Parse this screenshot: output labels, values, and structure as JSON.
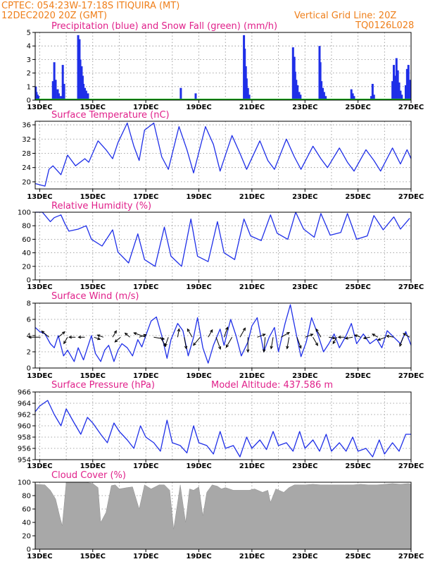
{
  "header": {
    "line1": "CPTEC:   054:23W-17:18S   ITIQUIRA (MT)",
    "line2": "12DEC2020 20Z (GMT)",
    "grid_note": "Vertical Grid Line: 20Z",
    "model_code": "TQ0126L028"
  },
  "colors": {
    "header": "#ef7f1a",
    "panel_title": "#e0208a",
    "series": "#1f2fe8",
    "snow": "#18a818",
    "cloud": "#a8a8a8"
  },
  "chart_data": [
    {
      "id": "precip",
      "type": "bar",
      "title": "Precipitation (blue) and Snow Fall (green) (mm/h)",
      "x_tick_labels": [
        "13DEC",
        "15DEC",
        "17DEC",
        "19DEC",
        "21DEC",
        "23DEC",
        "25DEC",
        "27DEC"
      ],
      "x_range": [
        12.83,
        27.0
      ],
      "ylim": [
        0,
        5
      ],
      "yticks": [
        0,
        1,
        2,
        3,
        4,
        5
      ],
      "x": [
        12.85,
        12.88,
        12.92,
        12.95,
        13.5,
        13.55,
        13.6,
        13.68,
        13.72,
        13.8,
        13.87,
        13.92,
        14.45,
        14.5,
        14.53,
        14.58,
        14.62,
        14.65,
        14.7,
        14.75,
        14.82,
        18.32,
        18.88,
        20.7,
        20.73,
        20.77,
        20.8,
        20.85,
        20.9,
        22.55,
        22.6,
        22.63,
        22.67,
        22.72,
        22.78,
        22.83,
        23.55,
        23.58,
        23.62,
        23.67,
        23.72,
        23.78,
        24.75,
        24.8,
        24.85,
        25.5,
        25.55,
        25.6,
        26.3,
        26.35,
        26.4,
        26.45,
        26.5,
        26.55,
        26.6,
        26.65,
        26.8,
        26.85,
        26.9,
        26.95
      ],
      "values": [
        1.0,
        0.6,
        0.4,
        0.3,
        1.4,
        2.8,
        1.5,
        0.8,
        0.5,
        0.3,
        2.6,
        1.2,
        4.8,
        4.5,
        3.0,
        2.5,
        1.8,
        1.2,
        0.9,
        0.7,
        0.5,
        0.9,
        0.5,
        4.8,
        3.8,
        2.5,
        1.6,
        0.9,
        0.4,
        3.9,
        3.2,
        2.1,
        1.5,
        1.1,
        0.6,
        0.4,
        4.0,
        2.8,
        1.4,
        0.9,
        0.6,
        0.3,
        0.8,
        0.5,
        0.3,
        0.3,
        1.2,
        0.4,
        1.4,
        2.6,
        1.8,
        3.1,
        2.2,
        1.3,
        0.7,
        0.4,
        1.1,
        2.3,
        2.6,
        1.5
      ],
      "snow_values": [
        0,
        0
      ]
    },
    {
      "id": "temp",
      "type": "line",
      "title": "Surface Temperature (nC)",
      "x_tick_labels": [
        "13DEC",
        "15DEC",
        "17DEC",
        "19DEC",
        "21DEC",
        "23DEC",
        "25DEC",
        "27DEC"
      ],
      "x_range": [
        12.83,
        27.0
      ],
      "ylim": [
        18,
        37
      ],
      "yticks": [
        20,
        24,
        28,
        32,
        36
      ],
      "x": [
        12.83,
        13.2,
        13.35,
        13.5,
        13.8,
        14.05,
        14.35,
        14.7,
        14.85,
        15.2,
        15.5,
        15.75,
        15.95,
        16.3,
        16.55,
        16.75,
        16.95,
        17.3,
        17.6,
        17.85,
        18.25,
        18.55,
        18.8,
        19.25,
        19.55,
        19.8,
        20.25,
        20.55,
        20.8,
        21.3,
        21.6,
        21.85,
        22.3,
        22.6,
        22.85,
        23.3,
        23.6,
        23.85,
        24.3,
        24.6,
        24.85,
        25.3,
        25.6,
        25.85,
        26.3,
        26.6,
        26.85,
        27.0
      ],
      "values": [
        19.5,
        18.8,
        23.5,
        24.5,
        22.0,
        27.5,
        24.5,
        26.5,
        25.5,
        31.5,
        29.0,
        26.5,
        31.0,
        36.5,
        30.0,
        26.0,
        34.5,
        36.5,
        27.0,
        23.5,
        35.5,
        29.0,
        22.5,
        35.5,
        30.5,
        23.0,
        33.0,
        28.0,
        23.5,
        31.5,
        26.0,
        23.5,
        32.0,
        27.0,
        23.5,
        30.0,
        26.5,
        24.0,
        29.5,
        25.5,
        23.0,
        29.0,
        26.0,
        23.0,
        29.5,
        25.0,
        29.0,
        26.5
      ]
    },
    {
      "id": "rh",
      "type": "line",
      "title": "Relative Humidity (%)",
      "x_tick_labels": [
        "13DEC",
        "15DEC",
        "17DEC",
        "19DEC",
        "21DEC",
        "23DEC",
        "25DEC",
        "27DEC"
      ],
      "x_range": [
        12.83,
        27.0
      ],
      "ylim": [
        0,
        100
      ],
      "yticks": [
        0,
        20,
        40,
        60,
        80,
        100
      ],
      "x": [
        12.83,
        13.1,
        13.4,
        13.55,
        13.8,
        13.95,
        14.1,
        14.45,
        14.75,
        14.95,
        15.35,
        15.75,
        15.95,
        16.35,
        16.7,
        16.95,
        17.35,
        17.7,
        17.95,
        18.35,
        18.7,
        18.95,
        19.35,
        19.7,
        19.95,
        20.35,
        20.7,
        20.95,
        21.35,
        21.7,
        21.95,
        22.35,
        22.65,
        22.95,
        23.35,
        23.6,
        23.95,
        24.35,
        24.6,
        24.95,
        25.35,
        25.6,
        25.95,
        26.35,
        26.6,
        26.95
      ],
      "values": [
        100,
        100,
        86,
        92,
        96,
        83,
        72,
        75,
        80,
        60,
        50,
        74,
        41,
        25,
        68,
        30,
        20,
        78,
        35,
        20,
        90,
        35,
        27,
        86,
        40,
        30,
        90,
        65,
        58,
        96,
        69,
        60,
        100,
        75,
        63,
        98,
        66,
        70,
        98,
        60,
        65,
        95,
        74,
        93,
        75,
        91
      ]
    },
    {
      "id": "wind",
      "type": "line",
      "title": "Surface Wind (m/s)",
      "x_tick_labels": [
        "13DEC",
        "15DEC",
        "17DEC",
        "19DEC",
        "21DEC",
        "23DEC",
        "25DEC",
        "27DEC"
      ],
      "x_range": [
        12.83,
        27.0
      ],
      "ylim": [
        0,
        8
      ],
      "yticks": [
        0,
        2,
        4,
        6,
        8
      ],
      "x": [
        12.83,
        13.0,
        13.2,
        13.4,
        13.55,
        13.7,
        13.9,
        14.05,
        14.3,
        14.45,
        14.65,
        14.8,
        14.95,
        15.1,
        15.3,
        15.45,
        15.6,
        15.8,
        15.95,
        16.1,
        16.3,
        16.5,
        16.7,
        16.85,
        17.0,
        17.2,
        17.4,
        17.6,
        17.8,
        17.95,
        18.2,
        18.4,
        18.6,
        18.8,
        18.95,
        19.15,
        19.35,
        19.55,
        19.8,
        19.95,
        20.2,
        20.4,
        20.6,
        20.85,
        21.0,
        21.2,
        21.45,
        21.65,
        21.85,
        22.0,
        22.25,
        22.45,
        22.65,
        22.85,
        23.05,
        23.25,
        23.5,
        23.7,
        23.9,
        24.1,
        24.3,
        24.55,
        24.75,
        24.95,
        25.2,
        25.45,
        25.7,
        25.9,
        26.1,
        26.35,
        26.6,
        26.8,
        27.0
      ],
      "values": [
        5.0,
        4.5,
        4.2,
        3.0,
        2.5,
        4.0,
        1.5,
        2.2,
        0.8,
        2.5,
        1.0,
        2.5,
        4.0,
        1.8,
        0.8,
        2.2,
        2.8,
        0.8,
        2.2,
        3.0,
        2.5,
        1.5,
        3.5,
        2.6,
        4.0,
        5.8,
        6.3,
        4.0,
        1.2,
        3.5,
        5.5,
        4.6,
        1.5,
        3.8,
        6.2,
        2.5,
        0.6,
        2.8,
        4.8,
        2.8,
        6.0,
        4.0,
        1.5,
        3.2,
        5.2,
        6.2,
        2.0,
        3.8,
        5.0,
        2.0,
        5.5,
        7.8,
        4.5,
        1.4,
        3.2,
        6.2,
        4.0,
        2.0,
        3.0,
        4.2,
        2.5,
        4.0,
        5.5,
        3.0,
        4.2,
        3.0,
        3.6,
        2.5,
        4.6,
        3.8,
        3.0,
        4.5,
        2.8
      ],
      "vector_arrows": [
        {
          "x": 13.03,
          "dir_deg": 180,
          "len": 0.55
        },
        {
          "x": 13.35,
          "dir_deg": -140,
          "len": 0.45
        },
        {
          "x": 13.7,
          "dir_deg": -40,
          "len": 0.4
        },
        {
          "x": 14.05,
          "dir_deg": 120,
          "len": 0.35
        },
        {
          "x": 14.35,
          "dir_deg": 180,
          "len": 0.3
        },
        {
          "x": 14.7,
          "dir_deg": 180,
          "len": 0.3
        },
        {
          "x": 15.05,
          "dir_deg": 20,
          "len": 0.3
        },
        {
          "x": 15.4,
          "dir_deg": -160,
          "len": 0.3
        },
        {
          "x": 15.75,
          "dir_deg": -60,
          "len": 0.35
        },
        {
          "x": 16.05,
          "dir_deg": 140,
          "len": 0.35
        },
        {
          "x": 16.4,
          "dir_deg": -140,
          "len": 0.3
        },
        {
          "x": 16.75,
          "dir_deg": -20,
          "len": 0.35
        },
        {
          "x": 17.0,
          "dir_deg": 200,
          "len": 0.6
        },
        {
          "x": 17.3,
          "dir_deg": 10,
          "len": 0.5
        },
        {
          "x": 17.55,
          "dir_deg": 60,
          "len": 0.5
        },
        {
          "x": 17.85,
          "dir_deg": 110,
          "len": 0.45
        },
        {
          "x": 18.2,
          "dir_deg": -80,
          "len": 0.4
        },
        {
          "x": 18.45,
          "dir_deg": 80,
          "len": 0.55
        },
        {
          "x": 18.75,
          "dir_deg": -120,
          "len": 0.45
        },
        {
          "x": 19.05,
          "dir_deg": 130,
          "len": 0.5
        },
        {
          "x": 19.35,
          "dir_deg": -60,
          "len": 0.4
        },
        {
          "x": 19.65,
          "dir_deg": 70,
          "len": 0.6
        },
        {
          "x": 19.95,
          "dir_deg": -70,
          "len": 0.5
        },
        {
          "x": 20.25,
          "dir_deg": 120,
          "len": 0.55
        },
        {
          "x": 20.55,
          "dir_deg": -60,
          "len": 0.5
        },
        {
          "x": 20.85,
          "dir_deg": 90,
          "len": 0.7
        },
        {
          "x": 21.2,
          "dir_deg": -20,
          "len": 0.4
        },
        {
          "x": 21.5,
          "dir_deg": 95,
          "len": 0.7
        },
        {
          "x": 21.8,
          "dir_deg": 100,
          "len": 0.55
        },
        {
          "x": 22.1,
          "dir_deg": -30,
          "len": 0.45
        },
        {
          "x": 22.4,
          "dir_deg": 100,
          "len": 0.55
        },
        {
          "x": 22.7,
          "dir_deg": 70,
          "len": 0.55
        },
        {
          "x": 23.0,
          "dir_deg": -20,
          "len": 0.4
        },
        {
          "x": 23.3,
          "dir_deg": 60,
          "len": 0.45
        },
        {
          "x": 23.6,
          "dir_deg": -120,
          "len": 0.45
        },
        {
          "x": 23.9,
          "dir_deg": 10,
          "len": 0.3
        },
        {
          "x": 24.2,
          "dir_deg": 120,
          "len": 0.35
        },
        {
          "x": 24.5,
          "dir_deg": 180,
          "len": 0.3
        },
        {
          "x": 24.8,
          "dir_deg": 170,
          "len": 0.35
        },
        {
          "x": 25.1,
          "dir_deg": -160,
          "len": 0.3
        },
        {
          "x": 25.45,
          "dir_deg": 170,
          "len": 0.3
        },
        {
          "x": 25.75,
          "dir_deg": -150,
          "len": 0.3
        },
        {
          "x": 26.05,
          "dir_deg": 160,
          "len": 0.4
        },
        {
          "x": 26.35,
          "dir_deg": -170,
          "len": 0.35
        },
        {
          "x": 26.7,
          "dir_deg": 110,
          "len": 0.45
        },
        {
          "x": 26.95,
          "dir_deg": -150,
          "len": 0.35
        }
      ]
    },
    {
      "id": "pressure",
      "type": "line",
      "title": "Surface Pressure (hPa)",
      "annotation": "Model Altitude: 437.586 m",
      "x_tick_labels": [
        "13DEC",
        "15DEC",
        "17DEC",
        "19DEC",
        "21DEC",
        "23DEC",
        "25DEC",
        "27DEC"
      ],
      "x_range": [
        12.83,
        27.0
      ],
      "ylim": [
        954,
        966
      ],
      "yticks": [
        954,
        956,
        958,
        960,
        962,
        964,
        966
      ],
      "x": [
        12.83,
        13.0,
        13.3,
        13.55,
        13.8,
        14.0,
        14.3,
        14.55,
        14.8,
        15.0,
        15.3,
        15.55,
        15.8,
        16.0,
        16.3,
        16.55,
        16.8,
        17.0,
        17.3,
        17.55,
        17.8,
        18.0,
        18.3,
        18.55,
        18.8,
        19.0,
        19.3,
        19.55,
        19.8,
        20.0,
        20.3,
        20.55,
        20.8,
        21.0,
        21.3,
        21.55,
        21.8,
        22.0,
        22.3,
        22.55,
        22.8,
        23.0,
        23.3,
        23.55,
        23.8,
        24.0,
        24.3,
        24.55,
        24.8,
        25.0,
        25.3,
        25.55,
        25.8,
        26.0,
        26.3,
        26.55,
        26.8,
        27.0
      ],
      "values": [
        962.5,
        963.5,
        964.5,
        962.0,
        960.0,
        963.0,
        960.5,
        958.5,
        961.5,
        960.5,
        958.5,
        957.0,
        960.5,
        959.0,
        957.5,
        956.0,
        960.0,
        958.0,
        957.0,
        955.5,
        961.0,
        957.0,
        956.5,
        955.2,
        960.0,
        957.0,
        956.5,
        955.0,
        959.0,
        956.0,
        956.5,
        954.5,
        958.0,
        956.0,
        957.5,
        955.8,
        959.0,
        956.5,
        957.0,
        955.5,
        959.0,
        956.0,
        957.5,
        955.5,
        958.5,
        955.5,
        957.0,
        955.5,
        958.0,
        955.5,
        956.0,
        954.5,
        957.5,
        955.0,
        957.0,
        955.5,
        958.5,
        958.5
      ]
    },
    {
      "id": "cloud",
      "type": "area",
      "title": "Cloud Cover (%)",
      "x_tick_labels": [
        "13DEC",
        "15DEC",
        "17DEC",
        "19DEC",
        "21DEC",
        "23DEC",
        "25DEC",
        "27DEC"
      ],
      "x_range": [
        12.83,
        27.0
      ],
      "ylim": [
        0,
        100
      ],
      "yticks": [
        0,
        20,
        40,
        60,
        80,
        100
      ],
      "x": [
        12.83,
        13.2,
        13.4,
        13.6,
        13.75,
        13.85,
        14.0,
        14.3,
        14.5,
        14.7,
        15.0,
        15.2,
        15.3,
        15.5,
        15.7,
        15.85,
        16.0,
        16.3,
        16.5,
        16.75,
        16.95,
        17.2,
        17.5,
        17.7,
        17.9,
        18.05,
        18.3,
        18.5,
        18.65,
        18.8,
        19.0,
        19.15,
        19.3,
        19.5,
        19.7,
        19.85,
        20.0,
        20.3,
        20.6,
        20.9,
        21.1,
        21.4,
        21.6,
        21.7,
        21.9,
        22.2,
        22.4,
        22.6,
        22.8,
        23.0,
        23.3,
        23.6,
        23.9,
        24.2,
        24.5,
        24.8,
        25.1,
        25.4,
        25.7,
        26.0,
        26.3,
        26.6,
        26.9,
        27.0
      ],
      "values": [
        97,
        96,
        88,
        75,
        50,
        35,
        100,
        100,
        100,
        100,
        98,
        92,
        40,
        55,
        95,
        96,
        90,
        92,
        93,
        60,
        96,
        90,
        96,
        96,
        88,
        30,
        96,
        40,
        90,
        88,
        93,
        50,
        85,
        96,
        94,
        90,
        92,
        88,
        88,
        88,
        90,
        85,
        88,
        70,
        90,
        85,
        92,
        96,
        96,
        96,
        97,
        96,
        96,
        96,
        96,
        96,
        97,
        96,
        96,
        97,
        98,
        97,
        98,
        97
      ]
    }
  ]
}
